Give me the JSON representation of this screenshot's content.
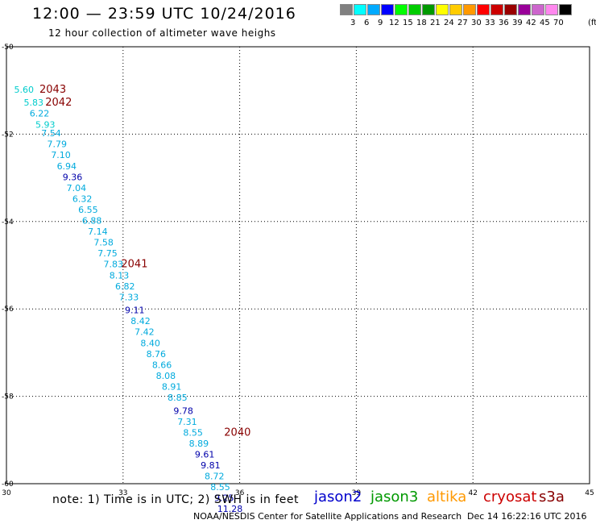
{
  "header": {
    "title": "12:00 — 23:59 UTC 10/24/2016",
    "subtitle": "12 hour collection of altimeter wave heighs"
  },
  "color_scale": {
    "labels": [
      "3",
      "6",
      "9",
      "12",
      "15",
      "18",
      "21",
      "24",
      "27",
      "30",
      "33",
      "36",
      "39",
      "42",
      "45",
      "70"
    ],
    "colors": [
      "#808080",
      "#00ffff",
      "#00aaff",
      "#0000ff",
      "#00ff00",
      "#00cc00",
      "#009900",
      "#ffff00",
      "#ffcc00",
      "#ff9900",
      "#ff0000",
      "#cc0000",
      "#990000",
      "#990099",
      "#cc66cc",
      "#ff88ee",
      "#000000"
    ],
    "unit": "(ft)"
  },
  "map": {
    "lon_ticks": [
      "30",
      "33",
      "36",
      "39",
      "42",
      "45"
    ],
    "lat_ticks": [
      "-50",
      "-52",
      "-54",
      "-56",
      "-58",
      "-60"
    ],
    "lon_range": [
      30,
      45
    ],
    "lat_range": [
      -50,
      -60
    ],
    "grid": "dotted",
    "points": [
      {
        "lon": 30.45,
        "lat": -51.05,
        "v": "5.60",
        "color": "#00cccc"
      },
      {
        "lon": 30.7,
        "lat": -51.35,
        "v": "5.83",
        "color": "#00cccc"
      },
      {
        "lon": 30.85,
        "lat": -51.6,
        "v": "6.22",
        "color": "#00aadd"
      },
      {
        "lon": 31.0,
        "lat": -51.85,
        "v": "5.93",
        "color": "#00cccc"
      },
      {
        "lon": 31.15,
        "lat": -52.05,
        "v": "7.54",
        "color": "#00aadd"
      },
      {
        "lon": 31.3,
        "lat": -52.3,
        "v": "7.79",
        "color": "#00aadd"
      },
      {
        "lon": 31.4,
        "lat": -52.55,
        "v": "7.10",
        "color": "#00aadd"
      },
      {
        "lon": 31.55,
        "lat": -52.8,
        "v": "6.94",
        "color": "#00aadd"
      },
      {
        "lon": 31.7,
        "lat": -53.05,
        "v": "9.36",
        "color": "#0000aa"
      },
      {
        "lon": 31.8,
        "lat": -53.3,
        "v": "7.04",
        "color": "#00aadd"
      },
      {
        "lon": 31.95,
        "lat": -53.55,
        "v": "6.32",
        "color": "#00aadd"
      },
      {
        "lon": 32.1,
        "lat": -53.8,
        "v": "6.55",
        "color": "#00aadd"
      },
      {
        "lon": 32.2,
        "lat": -54.05,
        "v": "6.88",
        "color": "#00aadd"
      },
      {
        "lon": 32.35,
        "lat": -54.3,
        "v": "7.14",
        "color": "#00aadd"
      },
      {
        "lon": 32.5,
        "lat": -54.55,
        "v": "7.58",
        "color": "#00aadd"
      },
      {
        "lon": 32.6,
        "lat": -54.8,
        "v": "7.75",
        "color": "#00aadd"
      },
      {
        "lon": 32.75,
        "lat": -55.05,
        "v": "7.83",
        "color": "#00aadd"
      },
      {
        "lon": 32.9,
        "lat": -55.3,
        "v": "8.13",
        "color": "#00aadd"
      },
      {
        "lon": 33.05,
        "lat": -55.55,
        "v": "6.82",
        "color": "#00aadd"
      },
      {
        "lon": 33.15,
        "lat": -55.8,
        "v": "7.33",
        "color": "#00aadd"
      },
      {
        "lon": 33.3,
        "lat": -56.1,
        "v": "9.11",
        "color": "#0000aa"
      },
      {
        "lon": 33.45,
        "lat": -56.35,
        "v": "8.42",
        "color": "#00aadd"
      },
      {
        "lon": 33.55,
        "lat": -56.6,
        "v": "7.42",
        "color": "#00aadd"
      },
      {
        "lon": 33.7,
        "lat": -56.85,
        "v": "8.40",
        "color": "#00aadd"
      },
      {
        "lon": 33.85,
        "lat": -57.1,
        "v": "8.76",
        "color": "#00aadd"
      },
      {
        "lon": 34.0,
        "lat": -57.35,
        "v": "8.66",
        "color": "#00aadd"
      },
      {
        "lon": 34.1,
        "lat": -57.6,
        "v": "8.08",
        "color": "#00aadd"
      },
      {
        "lon": 34.25,
        "lat": -57.85,
        "v": "8.91",
        "color": "#00aadd"
      },
      {
        "lon": 34.4,
        "lat": -58.1,
        "v": "8.85",
        "color": "#00aadd"
      },
      {
        "lon": 34.55,
        "lat": -58.4,
        "v": "9.78",
        "color": "#0000aa"
      },
      {
        "lon": 34.65,
        "lat": -58.65,
        "v": "7.31",
        "color": "#00aadd"
      },
      {
        "lon": 34.8,
        "lat": -58.9,
        "v": "8.55",
        "color": "#00aadd"
      },
      {
        "lon": 34.95,
        "lat": -59.15,
        "v": "8.89",
        "color": "#00aadd"
      },
      {
        "lon": 35.1,
        "lat": -59.4,
        "v": "9.61",
        "color": "#0000aa"
      },
      {
        "lon": 35.25,
        "lat": -59.65,
        "v": "9.81",
        "color": "#0000aa"
      },
      {
        "lon": 35.35,
        "lat": -59.9,
        "v": "8.72",
        "color": "#00aadd"
      },
      {
        "lon": 35.5,
        "lat": -60.15,
        "v": "8.55",
        "color": "#00aadd"
      },
      {
        "lon": 35.6,
        "lat": -60.4,
        "v": "9.25",
        "color": "#0000aa"
      },
      {
        "lon": 35.75,
        "lat": -60.65,
        "v": "11.28",
        "color": "#0000aa"
      }
    ],
    "hour_labels": [
      {
        "lon": 30.85,
        "lat": -51.05,
        "text": "2043"
      },
      {
        "lon": 31.0,
        "lat": -51.35,
        "text": "2042"
      },
      {
        "lon": 32.95,
        "lat": -55.05,
        "text": "2041"
      },
      {
        "lon": 35.6,
        "lat": -58.9,
        "text": "2040"
      }
    ]
  },
  "footer": {
    "note": "note: 1) Time is in UTC; 2) SWH is in feet",
    "satellites": [
      {
        "name": "jason2",
        "color": "#0000cc"
      },
      {
        "name": "jason3",
        "color": "#009900"
      },
      {
        "name": "altika",
        "color": "#ff9900"
      },
      {
        "name": "cryosat",
        "color": "#cc0000"
      },
      {
        "name": "s3a",
        "color": "#880000"
      }
    ],
    "credit": "NOAA/NESDIS Center for Satellite Applications and Research",
    "timestamp": "Dec 14 16:22:16 UTC 2016"
  }
}
